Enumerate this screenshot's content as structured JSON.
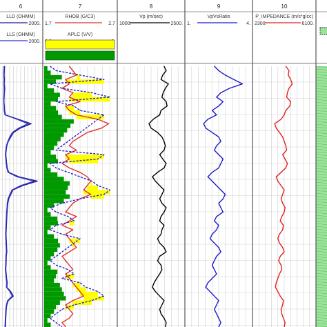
{
  "tracks": [
    {
      "id": "6",
      "number": "6",
      "curves": [
        {
          "name": "LLD (OHMM)",
          "min_label": "",
          "max_label": "2000.",
          "color": "#1a1a8c",
          "dash": false
        },
        {
          "name": "LLS (OHMM)",
          "min_label": "",
          "max_label": "2000.",
          "color": "#3333cc",
          "dash": false
        }
      ]
    },
    {
      "id": "7",
      "number": "7",
      "curves": [
        {
          "name": "RHOB (G/C3)",
          "min_label": "1.7",
          "max_label": "2.7",
          "color": "#e03030",
          "dash": false
        },
        {
          "name": "APLC (V/V)",
          "min_label": "0.6",
          "max_label": "0.",
          "color": "#2020c0",
          "dash": true
        }
      ],
      "fills": [
        {
          "name": "yellow-fill",
          "color": "#ffff00"
        },
        {
          "name": "green-fill",
          "color": "#009900"
        }
      ]
    },
    {
      "id": "8",
      "number": "8",
      "curves": [
        {
          "name": "Vp (m/sec)",
          "min_label": "1000.",
          "max_label": "2500.",
          "color": "#000000",
          "dash": false
        }
      ]
    },
    {
      "id": "9",
      "number": "9",
      "curves": [
        {
          "name": "VpVsRatio",
          "min_label": "1.",
          "max_label": "4.",
          "color": "#1a1acc",
          "dash": false
        }
      ]
    },
    {
      "id": "10",
      "number": "10",
      "curves": [
        {
          "name": "P_IMPEDANCE (m/s*g/cc)",
          "min_label": "2300.",
          "max_label": "6100.",
          "color": "#e02020",
          "dash": false
        }
      ]
    },
    {
      "id": "11",
      "number": "",
      "curves": [],
      "fills": [
        {
          "name": "lithology-fill",
          "color": "#9be39b"
        }
      ]
    }
  ],
  "chart_data": {
    "type": "line",
    "title": "",
    "xlabel": "",
    "ylabel": "",
    "grid": true,
    "depth_samples": 60,
    "series": [
      {
        "name": "LLD (OHMM)",
        "track": "6",
        "xlim": [
          0,
          2000
        ],
        "values": [
          220,
          210,
          200,
          215,
          205,
          225,
          210,
          200,
          190,
          210,
          220,
          260,
          880,
          1500,
          980,
          650,
          520,
          400,
          330,
          300,
          280,
          300,
          320,
          350,
          420,
          900,
          1800,
          1100,
          620,
          520,
          420,
          380,
          360,
          340,
          330,
          320,
          310,
          300,
          290,
          300,
          310,
          320,
          330,
          300,
          300,
          290,
          280,
          300,
          320,
          350,
          330,
          520,
          640,
          400,
          330,
          300,
          290,
          280,
          270,
          260
        ]
      },
      {
        "name": "LLS (OHMM)",
        "track": "6",
        "xlim": [
          0,
          2000
        ],
        "values": [
          200,
          190,
          185,
          195,
          190,
          200,
          195,
          185,
          180,
          195,
          200,
          240,
          820,
          1360,
          900,
          600,
          470,
          380,
          310,
          280,
          260,
          280,
          300,
          330,
          390,
          820,
          1650,
          1000,
          580,
          480,
          390,
          350,
          340,
          320,
          310,
          300,
          290,
          280,
          270,
          280,
          290,
          300,
          310,
          280,
          280,
          270,
          260,
          280,
          300,
          330,
          310,
          480,
          590,
          370,
          310,
          280,
          270,
          260,
          250,
          240
        ]
      },
      {
        "name": "RHOB (G/C3)",
        "track": "7",
        "xlim": [
          1.7,
          2.7
        ],
        "values": [
          2.05,
          2.1,
          2.15,
          2.0,
          2.05,
          1.95,
          2.1,
          2.05,
          2.2,
          2.0,
          2.05,
          2.15,
          2.45,
          2.6,
          2.5,
          2.3,
          2.2,
          2.1,
          2.05,
          2.15,
          2.0,
          2.05,
          1.95,
          2.05,
          2.2,
          2.3,
          2.35,
          2.3,
          2.25,
          2.35,
          2.2,
          2.1,
          2.05,
          2.0,
          2.15,
          2.05,
          1.95,
          2.1,
          2.0,
          2.05,
          2.1,
          2.15,
          2.05,
          1.95,
          2.0,
          2.05,
          2.1,
          2.0,
          2.05,
          2.1,
          2.15,
          2.2,
          2.25,
          2.1,
          2.0,
          2.05,
          2.1,
          2.05,
          1.95,
          2.0
        ]
      },
      {
        "name": "APLC (V/V)",
        "track": "7",
        "xlim": [
          0.6,
          0.0
        ],
        "values": [
          0.55,
          0.5,
          0.3,
          0.1,
          0.55,
          0.45,
          0.2,
          0.05,
          0.5,
          0.35,
          0.3,
          0.1,
          0.15,
          0.2,
          0.25,
          0.3,
          0.35,
          0.4,
          0.45,
          0.5,
          0.1,
          0.15,
          0.55,
          0.5,
          0.4,
          0.3,
          0.2,
          0.15,
          0.05,
          0.1,
          0.3,
          0.45,
          0.55,
          0.5,
          0.4,
          0.35,
          0.5,
          0.55,
          0.45,
          0.3,
          0.35,
          0.4,
          0.45,
          0.5,
          0.55,
          0.5,
          0.4,
          0.35,
          0.45,
          0.3,
          0.25,
          0.15,
          0.1,
          0.2,
          0.35,
          0.45,
          0.5,
          0.55,
          0.5,
          0.45
        ]
      },
      {
        "name": "Vp (m/sec)",
        "track": "8",
        "xlim": [
          1000,
          2500
        ],
        "values": [
          2050,
          2100,
          2020,
          1980,
          2150,
          2080,
          2030,
          2000,
          2100,
          2120,
          1980,
          1950,
          1800,
          1700,
          1750,
          1900,
          2000,
          2050,
          2080,
          2050,
          1950,
          2020,
          2100,
          2050,
          1900,
          1780,
          1850,
          1950,
          2050,
          2000,
          1950,
          2000,
          2100,
          2050,
          1980,
          1950,
          2050,
          2000,
          1980,
          1900,
          1950,
          2050,
          2100,
          1950,
          1900,
          1980,
          2000,
          1950,
          1880,
          1820,
          1780,
          1850,
          1950,
          2050,
          2000,
          1950,
          1980,
          2050,
          2100,
          2080
        ]
      },
      {
        "name": "VpVsRatio",
        "track": "9",
        "xlim": [
          1,
          4
        ],
        "values": [
          2.3,
          2.5,
          2.8,
          3.2,
          3.6,
          3.0,
          2.6,
          2.4,
          2.7,
          2.5,
          2.2,
          2.4,
          2.0,
          1.8,
          1.9,
          2.2,
          2.5,
          2.6,
          2.4,
          2.3,
          2.5,
          2.7,
          2.6,
          2.5,
          2.2,
          2.0,
          2.2,
          2.4,
          2.6,
          2.8,
          2.7,
          2.5,
          2.6,
          2.7,
          2.4,
          2.3,
          2.5,
          2.4,
          2.2,
          2.1,
          2.3,
          2.5,
          2.6,
          2.4,
          2.3,
          2.2,
          2.3,
          2.4,
          2.2,
          2.0,
          1.9,
          2.1,
          2.3,
          2.5,
          2.4,
          2.3,
          2.4,
          2.5,
          2.6,
          2.5
        ]
      },
      {
        "name": "P_IMPEDANCE (m/s*g/cc)",
        "track": "10",
        "xlim": [
          2300,
          6100
        ],
        "values": [
          4300,
          4500,
          4450,
          4600,
          4700,
          4500,
          4400,
          4350,
          4600,
          4550,
          4300,
          4200,
          4000,
          3600,
          3700,
          3900,
          4100,
          4200,
          4300,
          4350,
          4100,
          4250,
          4400,
          4300,
          4000,
          3700,
          3800,
          4000,
          4200,
          4100,
          4000,
          4100,
          4250,
          4200,
          4050,
          3950,
          4150,
          4100,
          3900,
          3800,
          3900,
          4100,
          4200,
          3950,
          3850,
          4000,
          4050,
          3900,
          3800,
          3700,
          3650,
          3800,
          3950,
          4150,
          4100,
          4000,
          4050,
          4150,
          4250,
          4200
        ]
      }
    ]
  }
}
